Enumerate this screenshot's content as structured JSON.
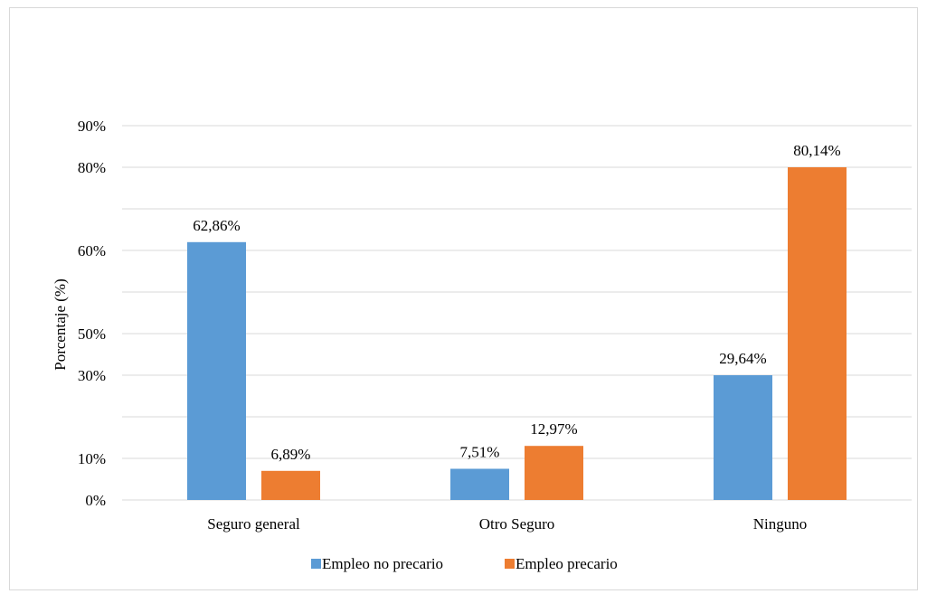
{
  "chart_data": {
    "type": "bar",
    "title": "",
    "xlabel": "",
    "ylabel": "Porcentaje (%)",
    "categories": [
      "Seguro general",
      "Otro Seguro",
      "Ninguno"
    ],
    "series": [
      {
        "name": "Empleo no precario",
        "color": "#5b9bd5",
        "values": [
          62.86,
          7.51,
          29.64
        ],
        "labels": [
          "62,86%",
          "7,51%",
          "29,64%"
        ]
      },
      {
        "name": "Empleo precario",
        "color": "#ed7d31",
        "values": [
          6.89,
          12.97,
          80.14
        ],
        "labels": [
          "6,89%",
          "12,97%",
          "80,14%"
        ]
      }
    ],
    "y_ticks": [
      {
        "label": "0%",
        "position": 0
      },
      {
        "label": "10%",
        "position": 1
      },
      {
        "label": "",
        "position": 2
      },
      {
        "label": "30%",
        "position": 3
      },
      {
        "label": "50%",
        "position": 4
      },
      {
        "label": "",
        "position": 5
      },
      {
        "label": "60%",
        "position": 6
      },
      {
        "label": "",
        "position": 7
      },
      {
        "label": "80%",
        "position": 8
      },
      {
        "label": "90%",
        "position": 9
      }
    ],
    "bar_positions_on_axis": [
      [
        6.2,
        0.7
      ],
      [
        0.75,
        1.3
      ],
      [
        3.0,
        8.0
      ]
    ],
    "y_axis_positions": [
      0,
      9
    ],
    "grid": true,
    "legend_position": "bottom",
    "gridline_color": "#d9d9d9"
  }
}
